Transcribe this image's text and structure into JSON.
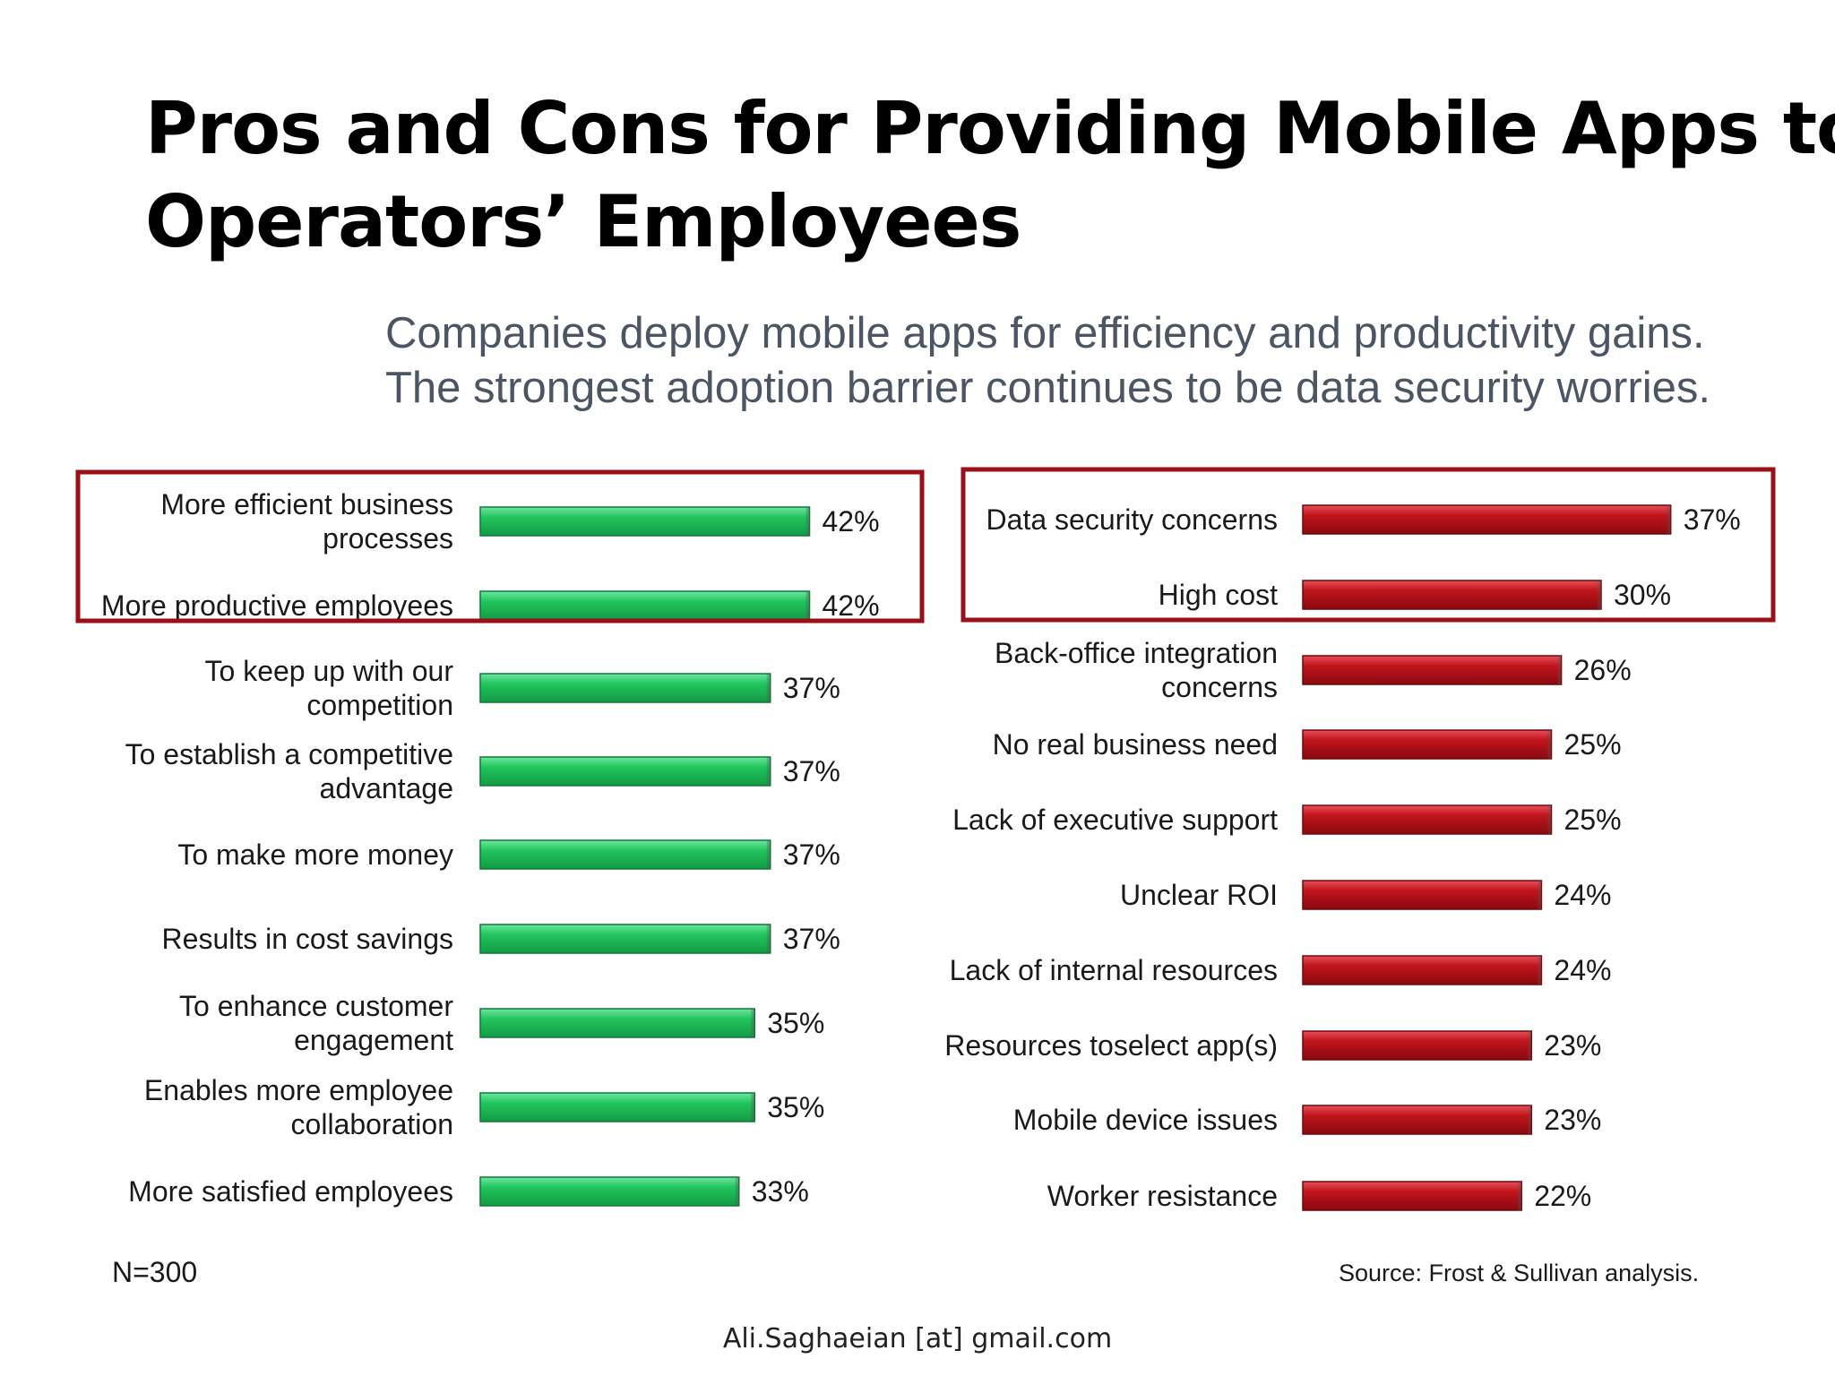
{
  "slide": {
    "title_lines": [
      "Pros and Cons for Providing Mobile Apps to",
      "Operators’ Employees"
    ],
    "subtitle_lines": [
      "Companies deploy mobile apps for efficiency and productivity gains.",
      "The strongest adoption barrier continues to be data security worries."
    ],
    "sample_note": "N=300",
    "source_note": "Source: Frost & Sullivan analysis.",
    "footer": "Ali.Saghaeian [at] gmail.com"
  },
  "colors": {
    "pros_bar": "#22c55e",
    "cons_bar": "#c0141c",
    "highlight_box": "#9b0f16"
  },
  "chart_data": [
    {
      "type": "bar",
      "orientation": "horizontal",
      "categories": [
        [
          "More efficient business",
          "processes"
        ],
        [
          "More productive employees"
        ],
        [
          "To keep up with our",
          "competition"
        ],
        [
          "To establish a competitive",
          "advantage"
        ],
        [
          "To make more money"
        ],
        [
          "Results in cost savings"
        ],
        [
          "To enhance customer",
          "engagement"
        ],
        [
          "Enables more employee",
          "collaboration"
        ],
        [
          "More satisfied employees"
        ]
      ],
      "values": [
        42,
        42,
        37,
        37,
        37,
        37,
        35,
        35,
        33
      ],
      "value_labels": [
        "42%",
        "42%",
        "37%",
        "37%",
        "37%",
        "37%",
        "35%",
        "35%",
        "33%"
      ],
      "highlighted_count": 2,
      "xlim": [
        0,
        50
      ]
    },
    {
      "type": "bar",
      "orientation": "horizontal",
      "categories": [
        [
          "Data security concerns"
        ],
        [
          "High cost"
        ],
        [
          "Back-office integration",
          "concerns"
        ],
        [
          "No real business need"
        ],
        [
          "Lack of executive support"
        ],
        [
          "Unclear ROI"
        ],
        [
          "Lack of internal resources"
        ],
        [
          "Resources toselect app(s)"
        ],
        [
          "Mobile device issues"
        ],
        [
          "Worker resistance"
        ]
      ],
      "values": [
        37,
        30,
        26,
        25,
        25,
        24,
        24,
        23,
        23,
        22
      ],
      "value_labels": [
        "37%",
        "30%",
        "26%",
        "25%",
        "25%",
        "24%",
        "24%",
        "23%",
        "23%",
        "22%"
      ],
      "highlighted_count": 2,
      "xlim": [
        0,
        40
      ]
    }
  ]
}
